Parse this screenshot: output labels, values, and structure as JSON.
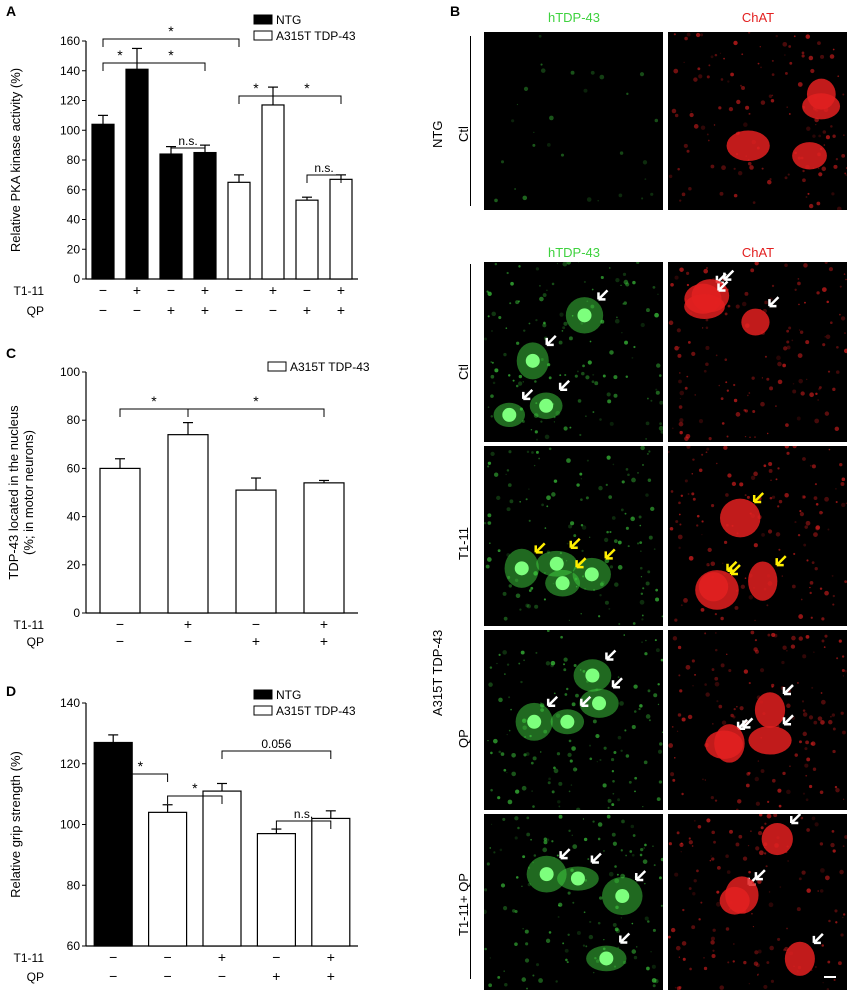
{
  "panels": {
    "A": {
      "letter": "A"
    },
    "B": {
      "letter": "B"
    },
    "C": {
      "letter": "C"
    },
    "D": {
      "letter": "D"
    }
  },
  "colors": {
    "ntg_fill": "#000000",
    "tdp_fill": "#ffffff",
    "green_stain": "#3fd23f",
    "red_stain": "#e32020"
  },
  "chart_data": [
    {
      "id": "A",
      "type": "bar",
      "ylabel": "Relative PKA kinase activity (%)",
      "ylim": [
        0,
        160
      ],
      "yticks": [
        0,
        20,
        40,
        60,
        80,
        100,
        120,
        140,
        160
      ],
      "legend": [
        "NTG",
        "A315T TDP-43"
      ],
      "legend_position": "top-right",
      "series": [
        {
          "name": "NTG",
          "values": [
            104,
            141,
            84,
            85
          ],
          "errors": [
            6,
            14,
            5,
            5
          ]
        },
        {
          "name": "A315T TDP-43",
          "values": [
            65,
            117,
            53,
            67
          ],
          "errors": [
            5,
            12,
            2,
            3
          ]
        }
      ],
      "treatment_labels": [
        "T1-11",
        "QP"
      ],
      "treatments": {
        "T1-11": [
          "−",
          "+",
          "−",
          "+",
          "−",
          "+",
          "−",
          "+"
        ],
        "QP": [
          "−",
          "−",
          "+",
          "+",
          "−",
          "−",
          "+",
          "+"
        ]
      },
      "significance": [
        {
          "bars": [
            1,
            5
          ],
          "label": "*"
        },
        {
          "bars": [
            1,
            2
          ],
          "label": "*"
        },
        {
          "bars": [
            2,
            4
          ],
          "label": "*"
        },
        {
          "bars": [
            3,
            4
          ],
          "label": "n.s."
        },
        {
          "bars": [
            5,
            6
          ],
          "label": "*"
        },
        {
          "bars": [
            6,
            8
          ],
          "label": "*"
        },
        {
          "bars": [
            7,
            8
          ],
          "label": "n.s."
        }
      ]
    },
    {
      "id": "C",
      "type": "bar",
      "ylabel": "TDP-43 located in the nucleus (%; in motor neurons)",
      "ylabel_lines": [
        "TDP-43 located in the nucleus",
        "(%; in motor neurons)"
      ],
      "ylim": [
        0,
        100
      ],
      "yticks": [
        0,
        20,
        40,
        60,
        80,
        100
      ],
      "legend": [
        "A315T TDP-43"
      ],
      "legend_position": "top-right",
      "series": [
        {
          "name": "A315T TDP-43",
          "values": [
            60,
            74,
            51,
            54
          ],
          "errors": [
            4,
            5,
            5,
            1
          ]
        }
      ],
      "treatment_labels": [
        "T1-11",
        "QP"
      ],
      "treatments": {
        "T1-11": [
          "−",
          "+",
          "−",
          "+"
        ],
        "QP": [
          "−",
          "−",
          "+",
          "+"
        ]
      },
      "significance": [
        {
          "bars": [
            1,
            2
          ],
          "label": "*"
        },
        {
          "bars": [
            2,
            4
          ],
          "label": "*"
        }
      ]
    },
    {
      "id": "D",
      "type": "bar",
      "ylabel": "Relative grip strength (%)",
      "ylim": [
        60,
        140
      ],
      "yticks": [
        60,
        80,
        100,
        120,
        140
      ],
      "legend": [
        "NTG",
        "A315T TDP-43"
      ],
      "legend_position": "top-right",
      "series": [
        {
          "name": "NTG",
          "values": [
            127
          ],
          "errors": [
            2.5
          ]
        },
        {
          "name": "A315T TDP-43",
          "values": [
            104,
            111,
            97,
            102
          ],
          "errors": [
            2.5,
            2.5,
            1.5,
            2.5
          ]
        }
      ],
      "treatment_labels": [
        "T1-11",
        "QP"
      ],
      "treatments": {
        "T1-11": [
          "−",
          "−",
          "+",
          "−",
          "+"
        ],
        "QP": [
          "−",
          "−",
          "−",
          "+",
          "+"
        ]
      },
      "significance": [
        {
          "bars": [
            1,
            2
          ],
          "label": "*"
        },
        {
          "bars": [
            2,
            3
          ],
          "label": "*"
        },
        {
          "bars": [
            3,
            5
          ],
          "label": "0.056"
        },
        {
          "bars": [
            4,
            5
          ],
          "label": "n.s."
        }
      ]
    }
  ],
  "micrographs": {
    "column_titles": [
      "hTDP-43",
      "ChAT"
    ],
    "group_labels": {
      "ntg": "NTG",
      "a315t": "A315T TDP-43"
    },
    "rows": [
      {
        "group": "NTG",
        "label": "Ctl"
      },
      {
        "group": "A315T TDP-43",
        "label": "Ctl"
      },
      {
        "group": "A315T TDP-43",
        "label": "T1-11"
      },
      {
        "group": "A315T TDP-43",
        "label": "QP"
      },
      {
        "group": "A315T TDP-43",
        "label": "T1-11+ QP"
      }
    ],
    "arrow_colors": {
      "white": "#ffffff",
      "yellow": "#ffee00"
    }
  }
}
